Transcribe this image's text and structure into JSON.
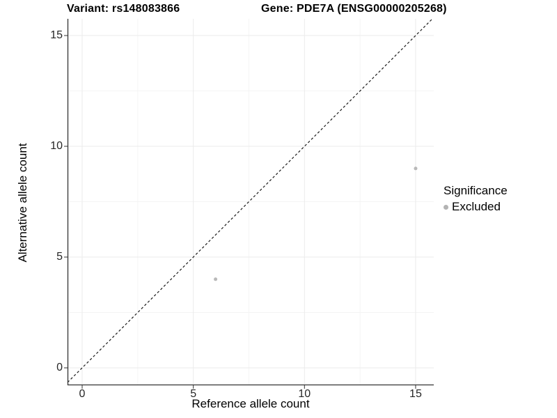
{
  "chart_data": {
    "type": "scatter",
    "title_variant": "Variant: rs148083866",
    "title_gene": "Gene: PDE7A (ENSG00000205268)",
    "xlabel": "Reference allele count",
    "ylabel": "Alternative allele count",
    "x_ticks": [
      0,
      5,
      10,
      15
    ],
    "y_ticks": [
      0,
      5,
      10,
      15
    ],
    "x_minor_ticks": [
      2.5,
      7.5,
      12.5
    ],
    "y_minor_ticks": [
      2.5,
      7.5,
      12.5
    ],
    "xlim": [
      -0.66,
      15.82
    ],
    "ylim": [
      -0.79,
      15.75
    ],
    "grid": true,
    "identity_line": {
      "style": "dashed",
      "slope": 1,
      "intercept": 0,
      "color": "#1a1a1a"
    },
    "series": [
      {
        "name": "Excluded",
        "color": "#b9b9b9",
        "point_radius": 2.5,
        "points": [
          [
            6,
            4
          ],
          [
            15,
            9
          ]
        ]
      }
    ],
    "legend": {
      "title": "Significance",
      "position": "right",
      "entries": [
        {
          "label": "Excluded",
          "color": "#b3b3b3"
        }
      ]
    },
    "colors": {
      "grid_major": "#ebebeb",
      "grid_minor": "#f4f4f4",
      "axis_line": "#333333",
      "tick_mark": "#333333",
      "tick_text": "#262626"
    }
  }
}
